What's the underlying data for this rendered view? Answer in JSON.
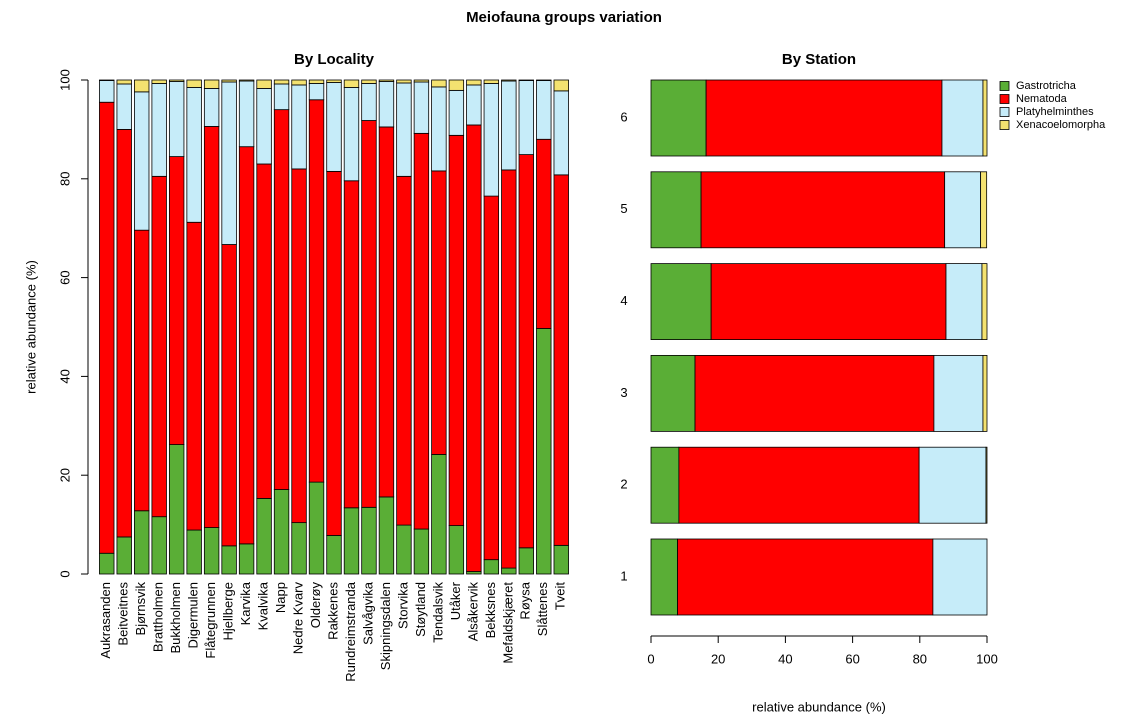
{
  "title": "Meiofauna groups variation",
  "chart_data": [
    {
      "type": "bar",
      "stacked": true,
      "title": "By Locality",
      "ylabel": "relative abundance (%)",
      "categories": [
        "Aukrasanden",
        "Beitveitnes",
        "Bjørnsvik",
        "Brattholmen",
        "Bukkholmen",
        "Digermulen",
        "Flåtegrunnen",
        "Hjellberge",
        "Karvika",
        "Kvalvika",
        "Napp",
        "Nedre Kvarv",
        "Olderøy",
        "Rakkenes",
        "Rundreimstranda",
        "Salvågvika",
        "Skipningsdalen",
        "Storvika",
        "Støytland",
        "Tendalsvik",
        "Utåker",
        "Alsåkervik",
        "Bekksnes",
        "Mefaldskjæret",
        "Røysa",
        "Slåttenes",
        "Tveit"
      ],
      "series": [
        {
          "color": "#5aae36",
          "values": [
            4.2,
            7.5,
            12.8,
            11.6,
            26.2,
            8.9,
            9.4,
            5.7,
            6.1,
            15.3,
            17.1,
            10.4,
            18.6,
            7.8,
            13.4,
            13.5,
            15.6,
            9.9,
            9.1,
            24.2,
            9.8,
            0.5,
            2.9,
            1.2,
            5.3,
            49.7,
            5.8
          ]
        },
        {
          "color": "#ff0000",
          "values": [
            91.3,
            82.5,
            56.8,
            68.9,
            58.3,
            62.3,
            81.2,
            61,
            80.4,
            67.7,
            76.9,
            71.6,
            77.4,
            73.7,
            66.2,
            78.3,
            74.9,
            70.6,
            80.1,
            57.4,
            79,
            90.4,
            73.6,
            80.6,
            79.6,
            38.3,
            75
          ]
        },
        {
          "color": "#c6ecf9",
          "values": [
            4.4,
            9.2,
            28,
            18.8,
            15.2,
            27.3,
            7.7,
            32.9,
            13.3,
            15.3,
            5.2,
            17,
            3.3,
            18,
            18.9,
            7.5,
            9.2,
            18.9,
            10.4,
            17,
            9.1,
            8.1,
            22.8,
            18,
            15,
            11.9,
            17
          ]
        },
        {
          "color": "#f4e270",
          "values": [
            0.1,
            0.8,
            2.4,
            0.7,
            0.3,
            1.5,
            1.7,
            0.4,
            0.2,
            1.7,
            0.8,
            1,
            0.7,
            0.5,
            1.5,
            0.7,
            0.3,
            0.6,
            0.4,
            1.4,
            2.1,
            1,
            0.7,
            0.2,
            0.1,
            0.1,
            2.2
          ]
        }
      ],
      "ylim": [
        0,
        100
      ],
      "yticks": [
        0,
        20,
        40,
        60,
        80,
        100
      ]
    },
    {
      "type": "bar",
      "stacked": true,
      "horizontal": true,
      "title": "By Station",
      "xlabel": "relative abundance (%)",
      "categories": [
        "1",
        "2",
        "3",
        "4",
        "5",
        "6"
      ],
      "series": [
        {
          "name": "Gastrotricha",
          "color": "#5aae36",
          "values": [
            7.9,
            8.3,
            13.1,
            17.9,
            14.9,
            16.4
          ]
        },
        {
          "name": "Nematoda",
          "color": "#ff0000",
          "values": [
            76,
            71.5,
            71.1,
            69.9,
            72.5,
            70.2
          ]
        },
        {
          "name": "Platyhelminthes",
          "color": "#c6ecf9",
          "values": [
            16.1,
            19.9,
            14.6,
            10.7,
            10.7,
            12.2
          ]
        },
        {
          "name": "Xenacoelomorpha",
          "color": "#f4e270",
          "values": [
            0,
            0.3,
            1.2,
            1.5,
            1.8,
            1.2
          ]
        }
      ],
      "xlim": [
        0,
        100
      ],
      "xticks": [
        0,
        20,
        40,
        60,
        80,
        100
      ],
      "legend": "top-right"
    }
  ]
}
